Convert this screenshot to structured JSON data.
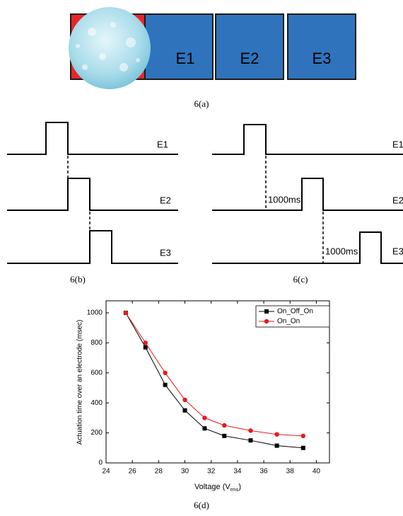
{
  "figure_a": {
    "caption": "6(a)",
    "electrodes": [
      "E1",
      "E2",
      "E3"
    ]
  },
  "figure_b": {
    "caption": "6(b)",
    "labels": [
      "E1",
      "E2",
      "E3"
    ]
  },
  "figure_c": {
    "caption": "6(c)",
    "labels": [
      "E1",
      "E2",
      "E3"
    ],
    "delays": [
      "1000ms",
      "1000ms"
    ]
  },
  "chart_data": {
    "type": "line",
    "caption": "6(d)",
    "x_label": [
      "Voltage (V",
      "rms",
      ")"
    ],
    "y_label": "Actuation time over an electrode (msec)",
    "x": [
      25.5,
      27,
      28.5,
      30,
      31.5,
      33,
      35,
      37,
      39
    ],
    "series": [
      {
        "name": "On_Off_On",
        "color": "#000000",
        "marker": "square",
        "values": [
          1000,
          770,
          520,
          350,
          230,
          180,
          150,
          115,
          100
        ]
      },
      {
        "name": "On_On",
        "color": "#e8181c",
        "marker": "circle",
        "values": [
          1000,
          800,
          600,
          420,
          300,
          250,
          215,
          190,
          180
        ]
      }
    ],
    "xlim": [
      24,
      41
    ],
    "ylim": [
      0,
      1080
    ],
    "xticks": [
      24,
      26,
      28,
      30,
      32,
      34,
      36,
      38,
      40
    ],
    "yticks": [
      0,
      200,
      400,
      600,
      800,
      1000
    ],
    "legend": "top-right"
  }
}
